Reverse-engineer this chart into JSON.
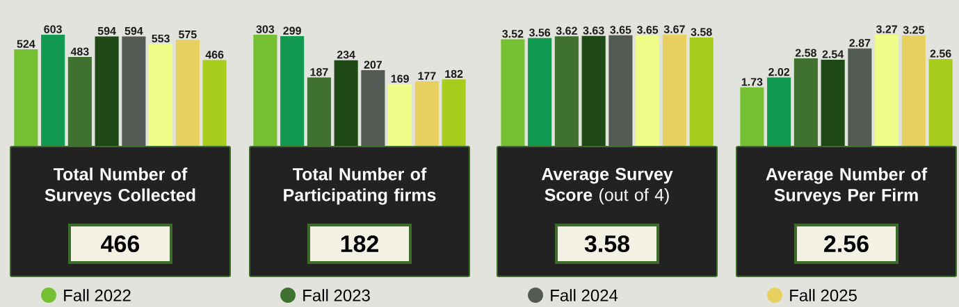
{
  "chart_data": [
    {
      "type": "bar",
      "title": "Total Number of Surveys Collected",
      "annotations": [
        "466"
      ],
      "categories": [
        null,
        null,
        null,
        null,
        null,
        null,
        null,
        null
      ],
      "data_labels": true,
      "values": [
        524,
        603,
        483,
        594,
        594,
        553,
        575,
        466
      ],
      "colors": [
        "#76c033",
        "#129a50",
        "#3f7230",
        "#1f4a15",
        "#545b55",
        "#eefc88",
        "#e8d060",
        "#a8cc1c"
      ]
    },
    {
      "type": "bar",
      "title": "Total Number of Participating firms",
      "annotations": [
        "182"
      ],
      "categories": [
        null,
        null,
        null,
        null,
        null,
        null,
        null,
        null
      ],
      "data_labels": true,
      "values": [
        303,
        299,
        187,
        234,
        207,
        169,
        177,
        182
      ],
      "colors": [
        "#76c033",
        "#129a50",
        "#3f7230",
        "#1f4a15",
        "#545b55",
        "#eefc88",
        "#e8d060",
        "#a8cc1c"
      ]
    },
    {
      "type": "bar",
      "title": "Average Survey Score",
      "subtitle": "(out of 4)",
      "annotations": [
        "3.58"
      ],
      "categories": [
        null,
        null,
        null,
        null,
        null,
        null,
        null,
        null
      ],
      "data_labels": true,
      "values": [
        3.52,
        3.56,
        3.62,
        3.63,
        3.65,
        3.65,
        3.67,
        3.58
      ],
      "colors": [
        "#76c033",
        "#129a50",
        "#3f7230",
        "#1f4a15",
        "#545b55",
        "#eefc88",
        "#e8d060",
        "#a8cc1c"
      ]
    },
    {
      "type": "bar",
      "title": "Average Number of Surveys Per Firm",
      "annotations": [
        "2.56"
      ],
      "categories": [
        null,
        null,
        null,
        null,
        null,
        null,
        null,
        null
      ],
      "data_labels": true,
      "values": [
        1.73,
        2.02,
        2.58,
        2.54,
        2.87,
        3.27,
        3.25,
        2.56
      ],
      "colors": [
        "#76c033",
        "#129a50",
        "#3f7230",
        "#1f4a15",
        "#545b55",
        "#eefc88",
        "#e8d060",
        "#a8cc1c"
      ]
    },
    {
      "type": "other",
      "legend": "bottom",
      "series": [
        {
          "name": "Fall 2022",
          "color": "#76c033"
        },
        {
          "name": "Fall 2023",
          "color": "#3f7230"
        },
        {
          "name": "Fall 2024",
          "color": "#545b55"
        },
        {
          "name": "Fall 2025",
          "color": "#e8d060"
        }
      ]
    }
  ]
}
